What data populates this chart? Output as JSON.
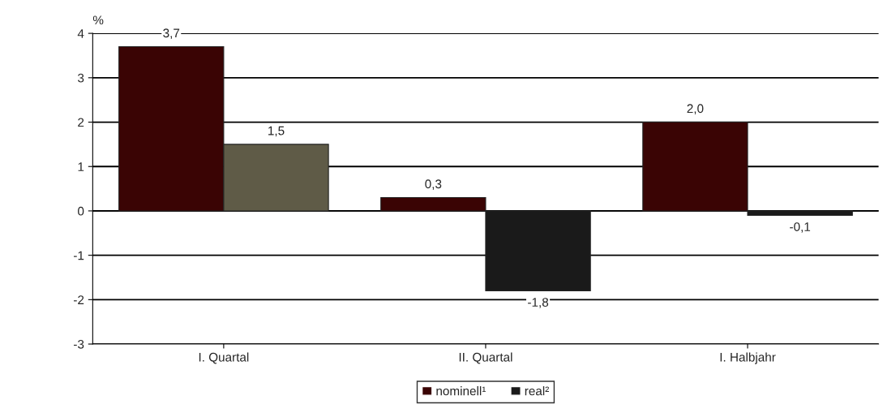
{
  "chart_data": {
    "type": "bar",
    "ylabel": "%",
    "categories": [
      "I. Quartal",
      "II. Quartal",
      "I. Halbjahr"
    ],
    "series": [
      {
        "name": "nominell¹",
        "color": "#3a0404",
        "values": [
          3.7,
          0.3,
          2.0
        ],
        "value_labels": [
          "3,7",
          "0,3",
          "2,0"
        ]
      },
      {
        "name": "real²",
        "color": "#1a1a1a",
        "colors": [
          "#5f5b47",
          "#1a1a1a",
          "#1a1a1a"
        ],
        "values": [
          1.5,
          -1.8,
          -0.1
        ],
        "value_labels": [
          "1,5",
          "-1,8",
          "-0,1"
        ]
      }
    ],
    "ylim": [
      -3,
      4
    ],
    "yticks": [
      -3,
      -2,
      -1,
      0,
      1,
      2,
      3,
      4
    ],
    "grid": "y",
    "legend": "bottom"
  }
}
